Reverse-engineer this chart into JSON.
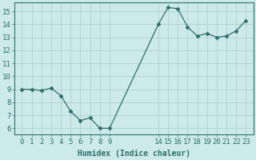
{
  "x_labels": [
    0,
    1,
    2,
    3,
    4,
    5,
    6,
    7,
    8,
    9,
    14,
    15,
    16,
    17,
    18,
    19,
    20,
    21,
    22,
    23
  ],
  "y": [
    9.0,
    9.0,
    8.9,
    9.1,
    8.5,
    7.3,
    6.6,
    6.8,
    6.0,
    6.0,
    14.0,
    15.3,
    15.2,
    13.8,
    13.1,
    13.3,
    13.0,
    13.1,
    13.5,
    14.3
  ],
  "line_color": "#2e6e6e",
  "marker": "D",
  "marker_size": 2.5,
  "bg_color": "#cceaea",
  "grid_color_major": "#b0c8c8",
  "grid_color_minor": "#c8dada",
  "xlabel": "Humidex (Indice chaleur)",
  "ylim": [
    5.5,
    15.7
  ],
  "yticks": [
    6,
    7,
    8,
    9,
    10,
    11,
    12,
    13,
    14,
    15
  ],
  "axis_color": "#2e6e6e",
  "label_fontsize": 7,
  "tick_fontsize": 6.5
}
